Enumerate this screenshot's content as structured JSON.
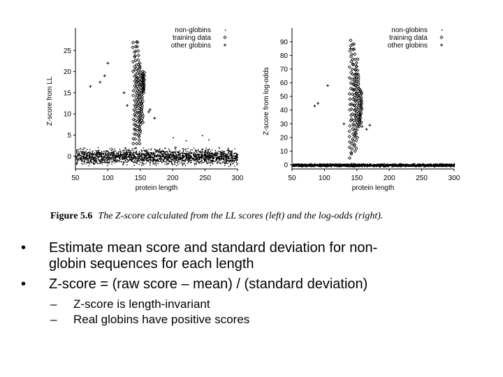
{
  "figure": {
    "caption_label": "Figure 5.6",
    "caption_text": "The Z-score calculated from the LL scores (left) and the log-odds (right)."
  },
  "chart_data": [
    {
      "type": "scatter",
      "title": "",
      "xlabel": "protein length",
      "ylabel": "Z-score from LL",
      "xlim": [
        50,
        300
      ],
      "ylim": [
        -3,
        29
      ],
      "xticks": [
        "50",
        "100",
        "150",
        "200",
        "250",
        "300"
      ],
      "yticks": [
        "0",
        "5",
        "10",
        "15",
        "20",
        "25"
      ],
      "legend": [
        "non-globins",
        "training data",
        "other globins"
      ],
      "legend_position": "top-right",
      "series": [
        {
          "name": "non-globins",
          "marker": "dot",
          "x_range": [
            50,
            300
          ],
          "y_range": [
            -2.5,
            2.5
          ],
          "notable_points": [
            [
              200,
              4.5
            ],
            [
              245,
              5.0
            ],
            [
              255,
              4.0
            ],
            [
              220,
              3.8
            ]
          ]
        },
        {
          "name": "training data",
          "marker": "diamond",
          "x_range": [
            135,
            160
          ],
          "y_range": [
            3,
            28
          ]
        },
        {
          "name": "other globins",
          "marker": "plus",
          "points": [
            [
              73,
              16.5
            ],
            [
              88,
              17.5
            ],
            [
              95,
              19
            ],
            [
              100,
              22
            ],
            [
              125,
              15
            ],
            [
              130,
              12
            ],
            [
              163,
              10.5
            ],
            [
              165,
              11
            ],
            [
              172,
              9
            ]
          ]
        }
      ]
    },
    {
      "type": "scatter",
      "title": "",
      "xlabel": "protein length",
      "ylabel": "Z-score from log-odds",
      "xlim": [
        50,
        300
      ],
      "ylim": [
        -3,
        96
      ],
      "xticks": [
        "50",
        "100",
        "150",
        "200",
        "250",
        "300"
      ],
      "yticks": [
        "0",
        "10",
        "20",
        "30",
        "40",
        "50",
        "60",
        "70",
        "80",
        "90"
      ],
      "legend": [
        "non-globins",
        "training data",
        "other globins"
      ],
      "legend_position": "top-right",
      "series": [
        {
          "name": "non-globins",
          "marker": "dot",
          "x_range": [
            50,
            300
          ],
          "y_range": [
            -1.5,
            1.5
          ]
        },
        {
          "name": "training data",
          "marker": "diamond",
          "x_range": [
            135,
            160
          ],
          "y_range": [
            5,
            90
          ]
        },
        {
          "name": "other globins",
          "marker": "plus",
          "points": [
            [
              85,
              43
            ],
            [
              90,
              45
            ],
            [
              105,
              58
            ],
            [
              130,
              30
            ],
            [
              140,
              85
            ],
            [
              158,
              28
            ],
            [
              165,
              26
            ],
            [
              170,
              29
            ]
          ]
        }
      ]
    }
  ],
  "bullets": [
    {
      "text": "Estimate mean score and standard deviation for non-\nglobin sequences for each length",
      "sub": []
    },
    {
      "text": "Z-score = (raw score – mean) / (standard deviation)",
      "sub": [
        "Z-score is length-invariant",
        "Real globins have positive scores"
      ]
    }
  ],
  "bullet_symbol": "•",
  "sub_symbol": "–",
  "colors": {
    "background": "#ffffff",
    "points": "#000000"
  }
}
